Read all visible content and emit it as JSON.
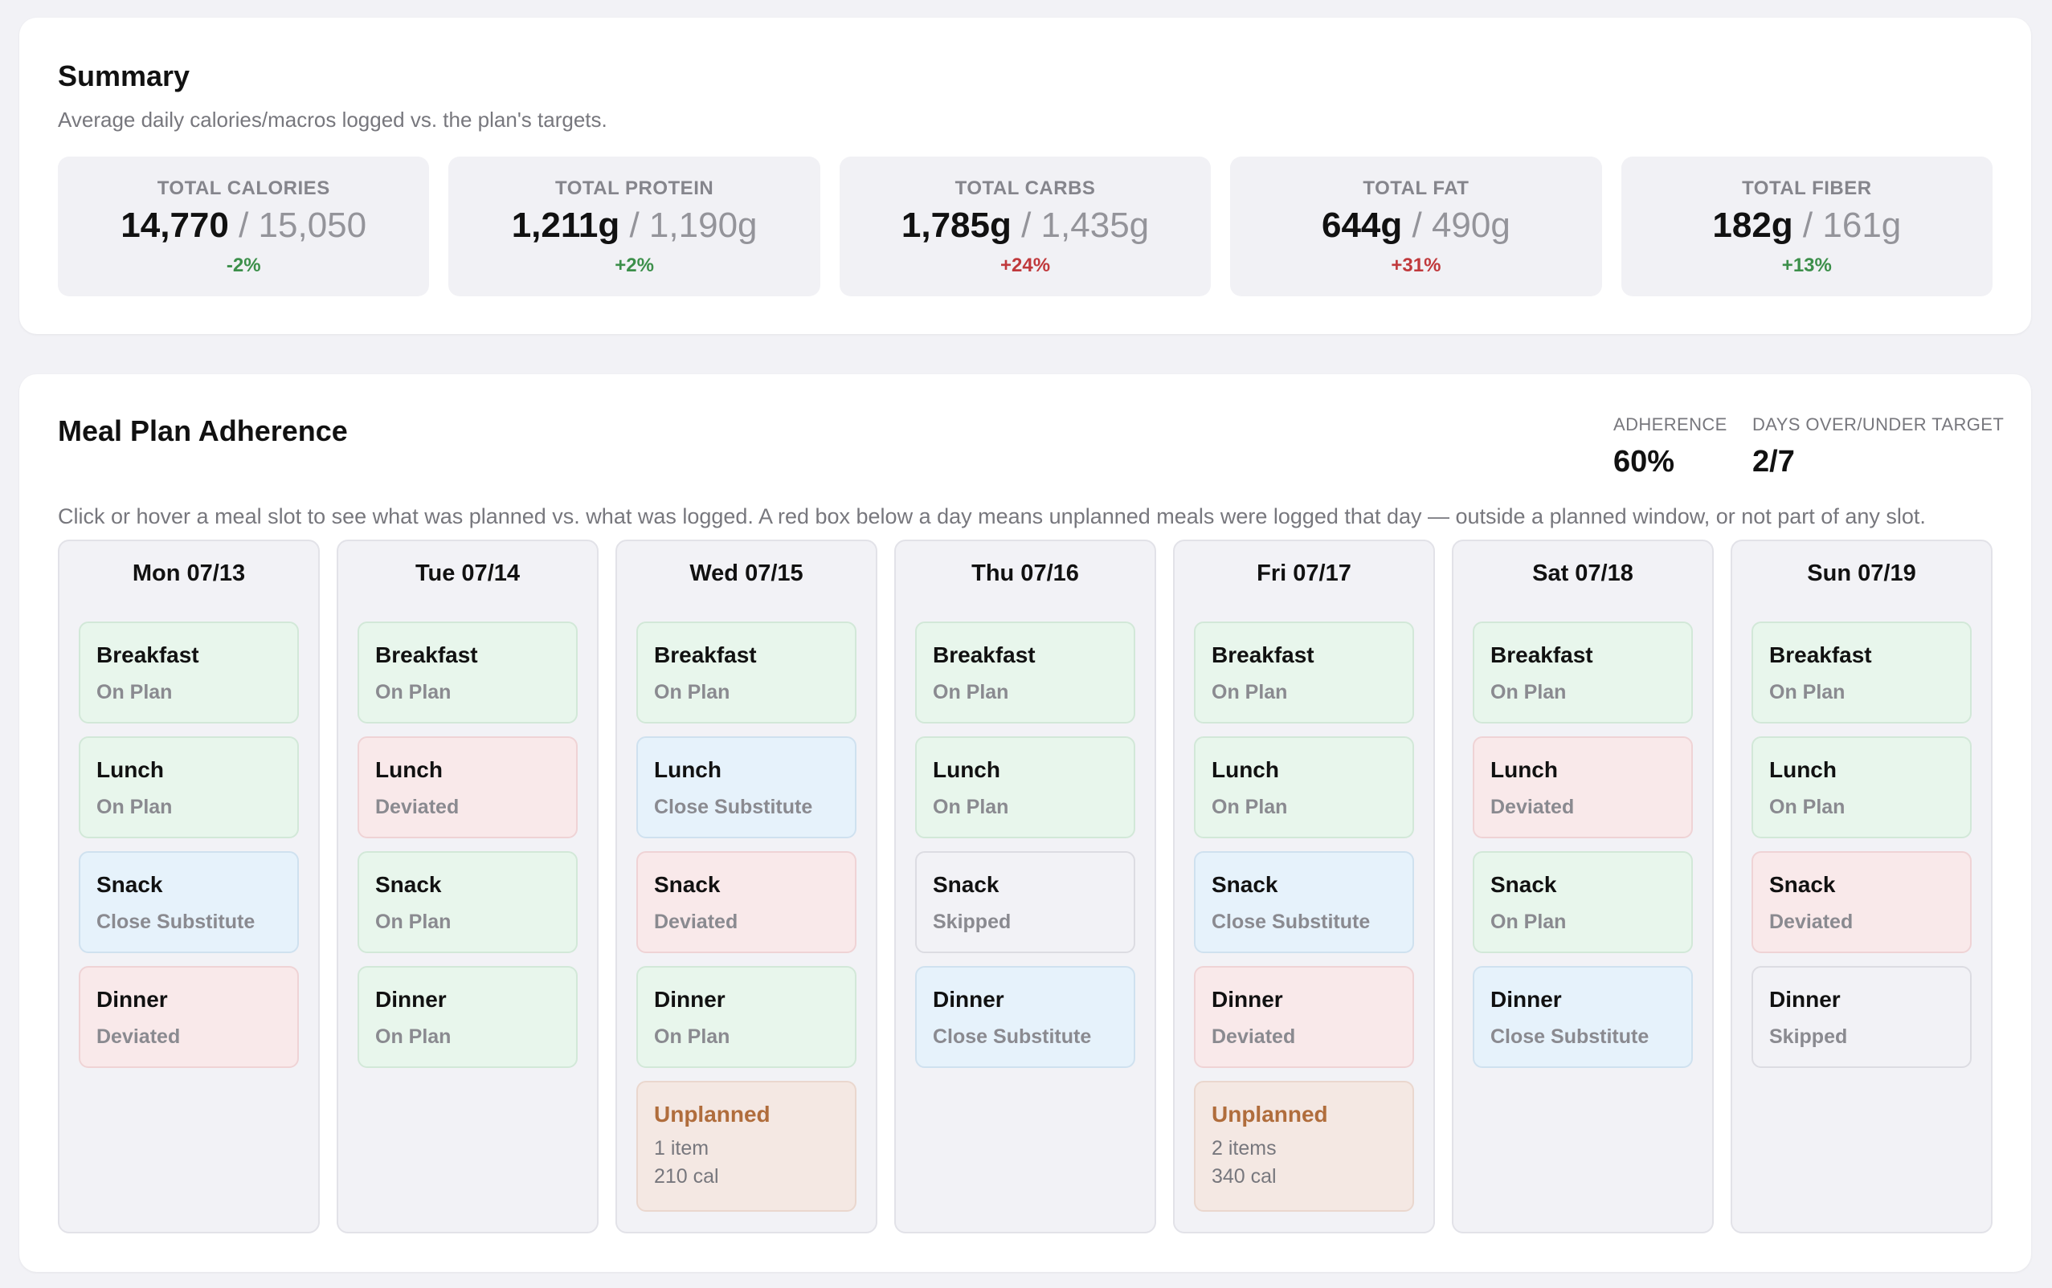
{
  "summary": {
    "title": "Summary",
    "subtitle": "Average daily calories/macros logged vs. the plan's targets.",
    "stats": [
      {
        "label": "TOTAL CALORIES",
        "actual": "14,770",
        "target": "/ 15,050",
        "delta": "-2%",
        "good": true
      },
      {
        "label": "TOTAL PROTEIN",
        "actual": "1,211g",
        "target": "/ 1,190g",
        "delta": "+2%",
        "good": true
      },
      {
        "label": "TOTAL CARBS",
        "actual": "1,785g",
        "target": "/ 1,435g",
        "delta": "+24%",
        "good": false
      },
      {
        "label": "TOTAL FAT",
        "actual": "644g",
        "target": "/ 490g",
        "delta": "+31%",
        "good": false
      },
      {
        "label": "TOTAL FIBER",
        "actual": "182g",
        "target": "/ 161g",
        "delta": "+13%",
        "good": true
      }
    ]
  },
  "adherence": {
    "title": "Meal Plan Adherence",
    "subtitle": "Click or hover a meal slot to see what was planned vs. what was logged. A red box below a day means unplanned meals were logged that day — outside a planned window, or not part of any slot.",
    "metrics": {
      "adherence_label": "ADHERENCE",
      "adherence_value": "60%",
      "days_label": "DAYS OVER/UNDER TARGET",
      "days_value": "2/7"
    },
    "days": [
      {
        "label": "Mon 07/13",
        "slots": [
          {
            "name": "Breakfast",
            "status": "On Plan"
          },
          {
            "name": "Lunch",
            "status": "On Plan"
          },
          {
            "name": "Snack",
            "status": "Close Substitute"
          },
          {
            "name": "Dinner",
            "status": "Deviated"
          }
        ]
      },
      {
        "label": "Tue 07/14",
        "slots": [
          {
            "name": "Breakfast",
            "status": "On Plan"
          },
          {
            "name": "Lunch",
            "status": "Deviated"
          },
          {
            "name": "Snack",
            "status": "On Plan"
          },
          {
            "name": "Dinner",
            "status": "On Plan"
          }
        ]
      },
      {
        "label": "Wed 07/15",
        "slots": [
          {
            "name": "Breakfast",
            "status": "On Plan"
          },
          {
            "name": "Lunch",
            "status": "Close Substitute"
          },
          {
            "name": "Snack",
            "status": "Deviated"
          },
          {
            "name": "Dinner",
            "status": "On Plan"
          }
        ],
        "unplanned": {
          "title": "Unplanned",
          "items": "1 item",
          "cal": "210 cal"
        }
      },
      {
        "label": "Thu 07/16",
        "slots": [
          {
            "name": "Breakfast",
            "status": "On Plan"
          },
          {
            "name": "Lunch",
            "status": "On Plan"
          },
          {
            "name": "Snack",
            "status": "Skipped"
          },
          {
            "name": "Dinner",
            "status": "Close Substitute"
          }
        ]
      },
      {
        "label": "Fri 07/17",
        "slots": [
          {
            "name": "Breakfast",
            "status": "On Plan"
          },
          {
            "name": "Lunch",
            "status": "On Plan"
          },
          {
            "name": "Snack",
            "status": "Close Substitute"
          },
          {
            "name": "Dinner",
            "status": "Deviated"
          }
        ],
        "unplanned": {
          "title": "Unplanned",
          "items": "2 items",
          "cal": "340 cal"
        }
      },
      {
        "label": "Sat 07/18",
        "slots": [
          {
            "name": "Breakfast",
            "status": "On Plan"
          },
          {
            "name": "Lunch",
            "status": "Deviated"
          },
          {
            "name": "Snack",
            "status": "On Plan"
          },
          {
            "name": "Dinner",
            "status": "Close Substitute"
          }
        ]
      },
      {
        "label": "Sun 07/19",
        "slots": [
          {
            "name": "Breakfast",
            "status": "On Plan"
          },
          {
            "name": "Lunch",
            "status": "On Plan"
          },
          {
            "name": "Snack",
            "status": "Deviated"
          },
          {
            "name": "Dinner",
            "status": "Skipped"
          }
        ]
      }
    ]
  },
  "colors": {
    "on_plan": "#e8f6ec",
    "deviated": "#f9e9ea",
    "close_substitute": "#e6f2fb",
    "skipped": "#f2f2f6",
    "unplanned": "#f4e8e3",
    "delta_good": "#3c8f4a",
    "delta_bad": "#c0393c"
  }
}
